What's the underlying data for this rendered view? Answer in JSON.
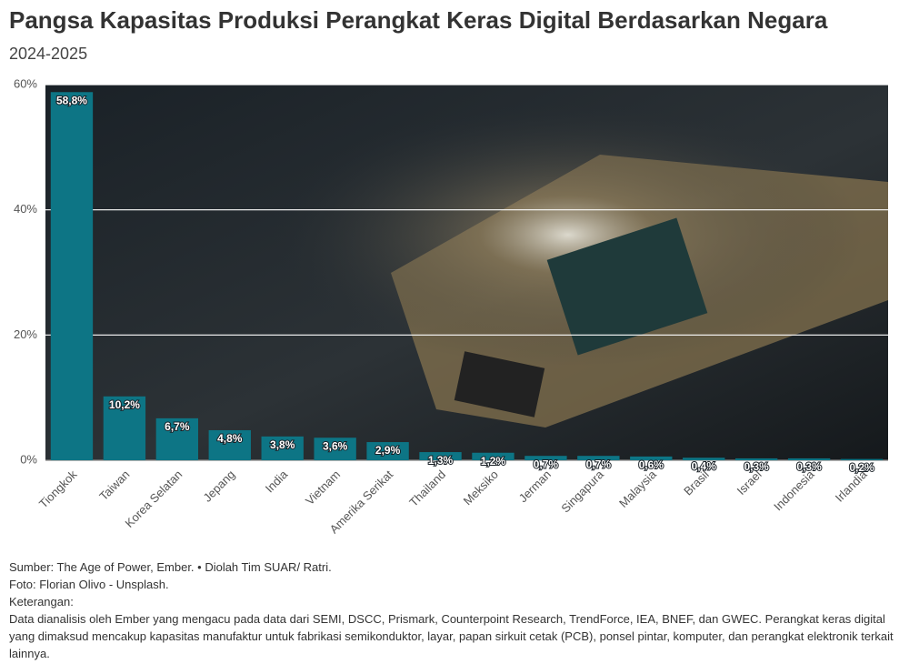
{
  "chart_data": {
    "type": "bar",
    "title": "Pangsa Kapasitas Produksi Perangkat Keras Digital Berdasarkan Negara",
    "subtitle": "2024-2025",
    "categories": [
      "Tiongkok",
      "Taiwan",
      "Korea Selatan",
      "Jepang",
      "India",
      "Vietnam",
      "Amerika Serikat",
      "Thailand",
      "Meksiko",
      "Jerman",
      "Singapura",
      "Malaysia",
      "Brasil",
      "Israel",
      "Indonesia",
      "Irlandia"
    ],
    "values": [
      58.8,
      10.2,
      6.7,
      4.8,
      3.8,
      3.6,
      2.9,
      1.3,
      1.2,
      0.7,
      0.7,
      0.6,
      0.4,
      0.3,
      0.3,
      0.2
    ],
    "value_labels": [
      "58,8%",
      "10,2%",
      "6,7%",
      "4,8%",
      "3,8%",
      "3,6%",
      "2,9%",
      "1,3%",
      "1,2%",
      "0,7%",
      "0,7%",
      "0,6%",
      "0,4%",
      "0,3%",
      "0,3%",
      "0,2%"
    ],
    "color": "#0d7585",
    "ylim": [
      0,
      60
    ],
    "yticks": [
      {
        "value": 0,
        "label": "0%"
      },
      {
        "value": 20,
        "label": "20%"
      },
      {
        "value": 40,
        "label": "40%"
      },
      {
        "value": 60,
        "label": "60%"
      }
    ],
    "grid": true,
    "notes": [
      "Sumber: The Age of Power, Ember. • Diolah Tim SUAR/ Ratri.",
      "Foto: Florian Olivo - Unsplash.",
      "Keterangan:",
      "Data dianalisis oleh Ember yang mengacu pada data dari SEMI, DSCC, Prismark, Counterpoint Research, TrendForce, IEA, BNEF, dan GWEC. Perangkat keras digital yang dimaksud mencakup kapasitas manufaktur untuk fabrikasi semikonduktor, layar, papan sirkuit cetak (PCB), ponsel pintar, komputer, dan perangkat elektronik terkait lainnya."
    ]
  }
}
